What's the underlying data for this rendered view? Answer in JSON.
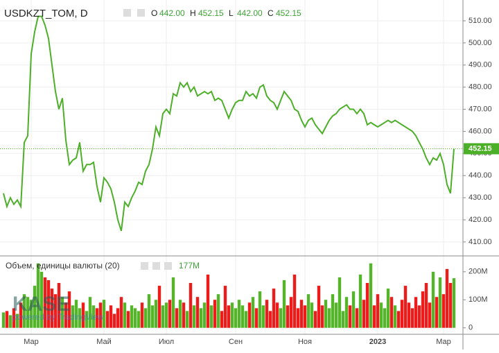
{
  "chart_data": {
    "type": "line",
    "title": "USDKZT_TOM, D",
    "ohlc": [
      {
        "name": "O",
        "value": "442.00"
      },
      {
        "name": "H",
        "value": "452.15"
      },
      {
        "name": "L",
        "value": "442.00"
      },
      {
        "name": "C",
        "value": "452.15"
      }
    ],
    "last_value_label": "452.15",
    "watermark": "KASE",
    "watermark_sub": "powered by TradingView",
    "categories": [
      null,
      null,
      null,
      null,
      null,
      null,
      null,
      null,
      "Мар",
      null,
      null,
      null,
      null,
      null,
      null,
      null,
      null,
      null,
      null,
      null,
      null,
      null,
      null,
      null,
      null,
      null,
      null,
      null,
      null,
      "Май",
      null,
      null,
      null,
      null,
      null,
      null,
      null,
      null,
      null,
      null,
      null,
      null,
      null,
      null,
      null,
      null,
      null,
      "Июл",
      null,
      null,
      null,
      null,
      null,
      null,
      null,
      null,
      null,
      null,
      null,
      null,
      null,
      null,
      null,
      null,
      null,
      null,
      null,
      "Сен",
      null,
      null,
      null,
      null,
      null,
      null,
      null,
      null,
      null,
      null,
      null,
      null,
      null,
      null,
      null,
      null,
      null,
      null,
      null,
      "Ноя",
      null,
      null,
      null,
      null,
      null,
      null,
      null,
      null,
      null,
      null,
      null,
      null,
      null,
      null,
      null,
      null,
      null,
      null,
      null,
      null,
      "2023",
      null,
      null,
      null,
      null,
      null,
      null,
      null,
      null,
      null,
      null,
      null,
      null,
      null,
      null,
      null,
      null,
      null,
      null,
      "Мар",
      null,
      null,
      null
    ],
    "series": [
      {
        "name": "USDKZT_TOM",
        "color": "#4caf28",
        "values": [
          432,
          426,
          430,
          427,
          429,
          426,
          455,
          458,
          495,
          505,
          512,
          512,
          508,
          502,
          490,
          478,
          470,
          475,
          456,
          445,
          447,
          448,
          455,
          442,
          445,
          445,
          446,
          435,
          428,
          439,
          437,
          434,
          428,
          420,
          415,
          428,
          426,
          430,
          433,
          437,
          436,
          442,
          445,
          452,
          462,
          458,
          468,
          470,
          468,
          477,
          476,
          482,
          480,
          482,
          478,
          480,
          476,
          477,
          478,
          477,
          478,
          474,
          475,
          474,
          470,
          466,
          470,
          473,
          474,
          474,
          478,
          476,
          477,
          475,
          480,
          481,
          476,
          474,
          473,
          470,
          474,
          478,
          476,
          474,
          470,
          469,
          465,
          462,
          465,
          466,
          463,
          461,
          459,
          462,
          465,
          467,
          468,
          470,
          471,
          472,
          470,
          470,
          468,
          470,
          468,
          463,
          464,
          463,
          462,
          463,
          464,
          465,
          464,
          465,
          464,
          463,
          462,
          461,
          460,
          458,
          455,
          452,
          448,
          445,
          448,
          447,
          450,
          445,
          436,
          432,
          452.15
        ]
      }
    ],
    "ylim": [
      404,
      519.4
    ],
    "yticks": [
      {
        "value": 410,
        "label": "410.00"
      },
      {
        "value": 420,
        "label": "420.00"
      },
      {
        "value": 430,
        "label": "430.00"
      },
      {
        "value": 440,
        "label": "440.00"
      },
      {
        "value": 450,
        "label": "450.00"
      },
      {
        "value": 460,
        "label": "460.00"
      },
      {
        "value": 470,
        "label": "470.00"
      },
      {
        "value": 480,
        "label": "480.00"
      },
      {
        "value": 490,
        "label": "490.00"
      },
      {
        "value": 500,
        "label": "500.00"
      },
      {
        "value": 510,
        "label": "510.00"
      }
    ],
    "grid": true,
    "volume": {
      "type": "bar",
      "title": "Объем, единицы валюты (20)",
      "last_label": "177M",
      "ylim": [
        -23,
        254
      ],
      "yticks": [
        0,
        {
          "value": 100,
          "label": "100M"
        },
        {
          "value": 200,
          "label": "200M"
        }
      ],
      "values": [
        55,
        60,
        45,
        70,
        50,
        90,
        120,
        110,
        100,
        150,
        230,
        200,
        180,
        170,
        140,
        120,
        160,
        110,
        90,
        130,
        80,
        100,
        70,
        90,
        60,
        110,
        80,
        70,
        90,
        100,
        60,
        80,
        50,
        70,
        110,
        90,
        60,
        80,
        70,
        60,
        90,
        70,
        120,
        80,
        100,
        150,
        80,
        90,
        100,
        180,
        70,
        100,
        90,
        60,
        160,
        80,
        110,
        70,
        90,
        190,
        80,
        100,
        120,
        60,
        150,
        80,
        90,
        70,
        100,
        80,
        60,
        90,
        110,
        70,
        130,
        80,
        100,
        60,
        140,
        90,
        70,
        170,
        80,
        110,
        190,
        70,
        100,
        80,
        120,
        90,
        60,
        150,
        80,
        100,
        70,
        120,
        90,
        180,
        60,
        110,
        80,
        130,
        70,
        190,
        100,
        160,
        230,
        80,
        120,
        90,
        70,
        140,
        110,
        80,
        60,
        100,
        150,
        90,
        70,
        110,
        80,
        130,
        160,
        90,
        200,
        110,
        180,
        120,
        210,
        160,
        177
      ],
      "colors": [
        "#55b52a",
        "#ee1b1b",
        "#55b52a",
        "#ee1b1b",
        "#55b52a",
        "#ee1b1b",
        "#55b52a",
        "#55b52a",
        "#55b52a",
        "#55b52a",
        "#55b52a",
        "#55b52a",
        "#ee1b1b",
        "#ee1b1b",
        "#ee1b1b",
        "#ee1b1b",
        "#ee1b1b",
        "#55b52a",
        "#ee1b1b",
        "#ee1b1b",
        "#55b52a",
        "#55b52a",
        "#55b52a",
        "#ee1b1b",
        "#55b52a",
        "#55b52a",
        "#55b52a",
        "#ee1b1b",
        "#ee1b1b",
        "#55b52a",
        "#ee1b1b",
        "#ee1b1b",
        "#ee1b1b",
        "#ee1b1b",
        "#ee1b1b",
        "#55b52a",
        "#ee1b1b",
        "#55b52a",
        "#55b52a",
        "#55b52a",
        "#ee1b1b",
        "#55b52a",
        "#55b52a",
        "#55b52a",
        "#55b52a",
        "#ee1b1b",
        "#55b52a",
        "#55b52a",
        "#ee1b1b",
        "#55b52a",
        "#ee1b1b",
        "#55b52a",
        "#ee1b1b",
        "#55b52a",
        "#ee1b1b",
        "#55b52a",
        "#ee1b1b",
        "#55b52a",
        "#55b52a",
        "#ee1b1b",
        "#55b52a",
        "#ee1b1b",
        "#55b52a",
        "#ee1b1b",
        "#ee1b1b",
        "#ee1b1b",
        "#55b52a",
        "#55b52a",
        "#55b52a",
        "#55b52a",
        "#55b52a",
        "#ee1b1b",
        "#55b52a",
        "#ee1b1b",
        "#55b52a",
        "#55b52a",
        "#ee1b1b",
        "#ee1b1b",
        "#ee1b1b",
        "#ee1b1b",
        "#55b52a",
        "#55b52a",
        "#ee1b1b",
        "#ee1b1b",
        "#ee1b1b",
        "#ee1b1b",
        "#ee1b1b",
        "#ee1b1b",
        "#55b52a",
        "#55b52a",
        "#ee1b1b",
        "#ee1b1b",
        "#ee1b1b",
        "#55b52a",
        "#55b52a",
        "#55b52a",
        "#55b52a",
        "#55b52a",
        "#55b52a",
        "#55b52a",
        "#ee1b1b",
        "#55b52a",
        "#ee1b1b",
        "#55b52a",
        "#ee1b1b",
        "#ee1b1b",
        "#55b52a",
        "#ee1b1b",
        "#ee1b1b",
        "#55b52a",
        "#55b52a",
        "#55b52a",
        "#ee1b1b",
        "#55b52a",
        "#ee1b1b",
        "#ee1b1b",
        "#ee1b1b",
        "#ee1b1b",
        "#ee1b1b",
        "#ee1b1b",
        "#ee1b1b",
        "#ee1b1b",
        "#ee1b1b",
        "#ee1b1b",
        "#55b52a",
        "#ee1b1b",
        "#55b52a",
        "#ee1b1b",
        "#ee1b1b",
        "#ee1b1b",
        "#55b52a"
      ]
    }
  }
}
